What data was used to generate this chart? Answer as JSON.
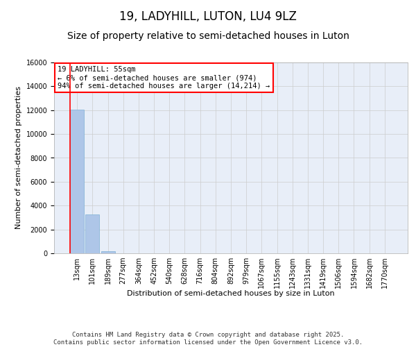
{
  "title": "19, LADYHILL, LUTON, LU4 9LZ",
  "subtitle": "Size of property relative to semi-detached houses in Luton",
  "xlabel": "Distribution of semi-detached houses by size in Luton",
  "ylabel": "Number of semi-detached properties",
  "bar_color": "#aec6e8",
  "bar_edge_color": "#7bafd4",
  "annotation_box_color": "#ff0000",
  "vline_color": "#ff0000",
  "annotation_text": "19 LADYHILL: 55sqm\n← 6% of semi-detached houses are smaller (974)\n94% of semi-detached houses are larger (14,214) →",
  "footer_text": "Contains HM Land Registry data © Crown copyright and database right 2025.\nContains public sector information licensed under the Open Government Licence v3.0.",
  "categories": [
    "13sqm",
    "101sqm",
    "189sqm",
    "277sqm",
    "364sqm",
    "452sqm",
    "540sqm",
    "628sqm",
    "716sqm",
    "804sqm",
    "892sqm",
    "979sqm",
    "1067sqm",
    "1155sqm",
    "1243sqm",
    "1331sqm",
    "1419sqm",
    "1506sqm",
    "1594sqm",
    "1682sqm",
    "1770sqm"
  ],
  "values": [
    12050,
    3250,
    200,
    0,
    0,
    0,
    0,
    0,
    0,
    0,
    0,
    0,
    0,
    0,
    0,
    0,
    0,
    0,
    0,
    0,
    0
  ],
  "ylim": [
    0,
    16000
  ],
  "yticks": [
    0,
    2000,
    4000,
    6000,
    8000,
    10000,
    12000,
    14000,
    16000
  ],
  "grid_color": "#cccccc",
  "bg_color": "#e8eef8",
  "title_fontsize": 12,
  "subtitle_fontsize": 10,
  "tick_fontsize": 7,
  "ylabel_fontsize": 8,
  "xlabel_fontsize": 8,
  "footer_fontsize": 6.5,
  "annotation_fontsize": 7.5,
  "vline_x_index": 0
}
